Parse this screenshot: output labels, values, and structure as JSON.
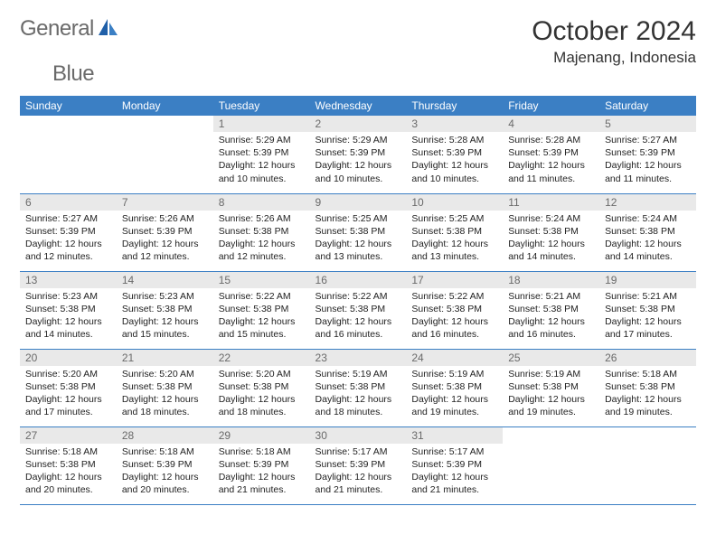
{
  "brand": {
    "general": "General",
    "blue": "Blue"
  },
  "header": {
    "title": "October 2024",
    "location": "Majenang, Indonesia"
  },
  "colors": {
    "header_bg": "#3b7fc4",
    "header_text": "#ffffff",
    "daynum_bg": "#e9e9e9",
    "daynum_text": "#6a6a6a",
    "text": "#222222",
    "row_sep": "#3b7fc4"
  },
  "day_labels": [
    "Sunday",
    "Monday",
    "Tuesday",
    "Wednesday",
    "Thursday",
    "Friday",
    "Saturday"
  ],
  "weeks": [
    [
      null,
      null,
      {
        "n": "1",
        "sr": "5:29 AM",
        "ss": "5:39 PM",
        "dl": "12 hours and 10 minutes."
      },
      {
        "n": "2",
        "sr": "5:29 AM",
        "ss": "5:39 PM",
        "dl": "12 hours and 10 minutes."
      },
      {
        "n": "3",
        "sr": "5:28 AM",
        "ss": "5:39 PM",
        "dl": "12 hours and 10 minutes."
      },
      {
        "n": "4",
        "sr": "5:28 AM",
        "ss": "5:39 PM",
        "dl": "12 hours and 11 minutes."
      },
      {
        "n": "5",
        "sr": "5:27 AM",
        "ss": "5:39 PM",
        "dl": "12 hours and 11 minutes."
      }
    ],
    [
      {
        "n": "6",
        "sr": "5:27 AM",
        "ss": "5:39 PM",
        "dl": "12 hours and 12 minutes."
      },
      {
        "n": "7",
        "sr": "5:26 AM",
        "ss": "5:39 PM",
        "dl": "12 hours and 12 minutes."
      },
      {
        "n": "8",
        "sr": "5:26 AM",
        "ss": "5:38 PM",
        "dl": "12 hours and 12 minutes."
      },
      {
        "n": "9",
        "sr": "5:25 AM",
        "ss": "5:38 PM",
        "dl": "12 hours and 13 minutes."
      },
      {
        "n": "10",
        "sr": "5:25 AM",
        "ss": "5:38 PM",
        "dl": "12 hours and 13 minutes."
      },
      {
        "n": "11",
        "sr": "5:24 AM",
        "ss": "5:38 PM",
        "dl": "12 hours and 14 minutes."
      },
      {
        "n": "12",
        "sr": "5:24 AM",
        "ss": "5:38 PM",
        "dl": "12 hours and 14 minutes."
      }
    ],
    [
      {
        "n": "13",
        "sr": "5:23 AM",
        "ss": "5:38 PM",
        "dl": "12 hours and 14 minutes."
      },
      {
        "n": "14",
        "sr": "5:23 AM",
        "ss": "5:38 PM",
        "dl": "12 hours and 15 minutes."
      },
      {
        "n": "15",
        "sr": "5:22 AM",
        "ss": "5:38 PM",
        "dl": "12 hours and 15 minutes."
      },
      {
        "n": "16",
        "sr": "5:22 AM",
        "ss": "5:38 PM",
        "dl": "12 hours and 16 minutes."
      },
      {
        "n": "17",
        "sr": "5:22 AM",
        "ss": "5:38 PM",
        "dl": "12 hours and 16 minutes."
      },
      {
        "n": "18",
        "sr": "5:21 AM",
        "ss": "5:38 PM",
        "dl": "12 hours and 16 minutes."
      },
      {
        "n": "19",
        "sr": "5:21 AM",
        "ss": "5:38 PM",
        "dl": "12 hours and 17 minutes."
      }
    ],
    [
      {
        "n": "20",
        "sr": "5:20 AM",
        "ss": "5:38 PM",
        "dl": "12 hours and 17 minutes."
      },
      {
        "n": "21",
        "sr": "5:20 AM",
        "ss": "5:38 PM",
        "dl": "12 hours and 18 minutes."
      },
      {
        "n": "22",
        "sr": "5:20 AM",
        "ss": "5:38 PM",
        "dl": "12 hours and 18 minutes."
      },
      {
        "n": "23",
        "sr": "5:19 AM",
        "ss": "5:38 PM",
        "dl": "12 hours and 18 minutes."
      },
      {
        "n": "24",
        "sr": "5:19 AM",
        "ss": "5:38 PM",
        "dl": "12 hours and 19 minutes."
      },
      {
        "n": "25",
        "sr": "5:19 AM",
        "ss": "5:38 PM",
        "dl": "12 hours and 19 minutes."
      },
      {
        "n": "26",
        "sr": "5:18 AM",
        "ss": "5:38 PM",
        "dl": "12 hours and 19 minutes."
      }
    ],
    [
      {
        "n": "27",
        "sr": "5:18 AM",
        "ss": "5:38 PM",
        "dl": "12 hours and 20 minutes."
      },
      {
        "n": "28",
        "sr": "5:18 AM",
        "ss": "5:39 PM",
        "dl": "12 hours and 20 minutes."
      },
      {
        "n": "29",
        "sr": "5:18 AM",
        "ss": "5:39 PM",
        "dl": "12 hours and 21 minutes."
      },
      {
        "n": "30",
        "sr": "5:17 AM",
        "ss": "5:39 PM",
        "dl": "12 hours and 21 minutes."
      },
      {
        "n": "31",
        "sr": "5:17 AM",
        "ss": "5:39 PM",
        "dl": "12 hours and 21 minutes."
      },
      null,
      null
    ]
  ],
  "labels": {
    "sunrise": "Sunrise:",
    "sunset": "Sunset:",
    "daylight": "Daylight:"
  }
}
